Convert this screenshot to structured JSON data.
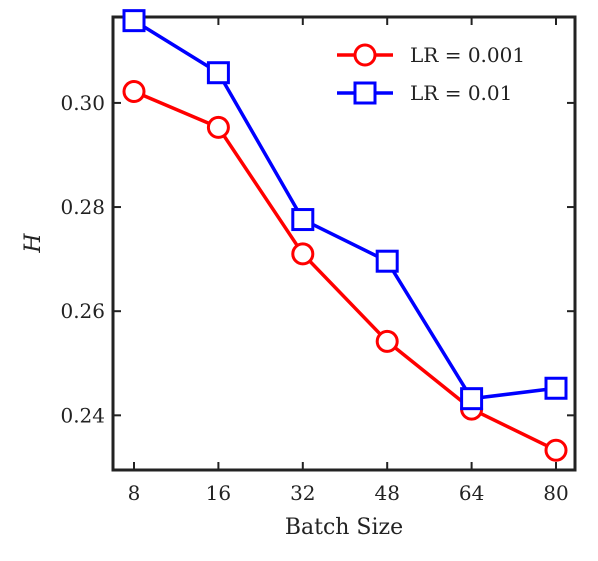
{
  "chart_data": {
    "type": "line",
    "title": "",
    "xlabel": "Batch Size",
    "ylabel": "H",
    "categories": [
      "8",
      "16",
      "32",
      "48",
      "64",
      "80"
    ],
    "yticks": [
      "0.24",
      "0.26",
      "0.28",
      "0.30"
    ],
    "ylim": [
      0.2295,
      0.3165
    ],
    "grid": false,
    "legend_position": "top-right",
    "series": [
      {
        "name": "LR = 0.001",
        "color": "#ff0000",
        "marker": "circle",
        "values": [
          0.3022,
          0.2953,
          0.271,
          0.2542,
          0.2412,
          0.2333
        ]
      },
      {
        "name": "LR = 0.01",
        "color": "#0000ff",
        "marker": "square",
        "values": [
          0.3158,
          0.3058,
          0.2776,
          0.2696,
          0.2432,
          0.2452
        ]
      }
    ]
  }
}
